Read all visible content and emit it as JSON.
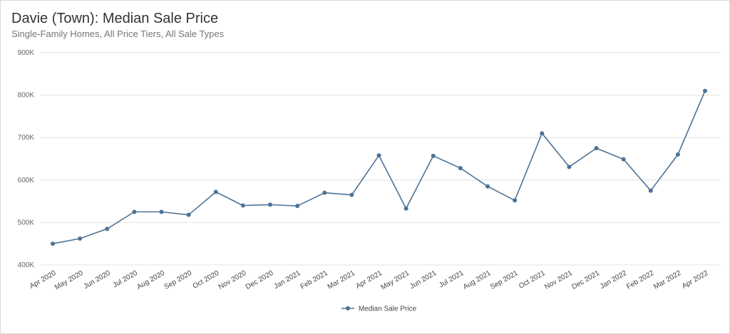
{
  "header": {
    "title": "Davie (Town): Median Sale Price",
    "subtitle": "Single-Family Homes, All Price Tiers, All Sale Types"
  },
  "colors": {
    "series": "#4e7396",
    "grid": "#e3e3e3"
  },
  "chart_data": {
    "type": "line",
    "title": "Davie (Town): Median Sale Price",
    "subtitle": "Single-Family Homes, All Price Tiers, All Sale Types",
    "xlabel": "",
    "ylabel": "",
    "ylim": [
      400000,
      900000
    ],
    "grid": true,
    "legend_position": "bottom-center",
    "y_ticks": [
      400000,
      500000,
      600000,
      700000,
      800000,
      900000
    ],
    "y_tick_labels": [
      "400K",
      "500K",
      "600K",
      "700K",
      "800K",
      "900K"
    ],
    "categories": [
      "Apr 2020",
      "May 2020",
      "Jun 2020",
      "Jul 2020",
      "Aug 2020",
      "Sep 2020",
      "Oct 2020",
      "Nov 2020",
      "Dec 2020",
      "Jan 2021",
      "Feb 2021",
      "Mar 2021",
      "Apr 2021",
      "May 2021",
      "Jun 2021",
      "Jul 2021",
      "Aug 2021",
      "Sep 2021",
      "Oct 2021",
      "Nov 2021",
      "Dec 2021",
      "Jan 2022",
      "Feb 2022",
      "Mar 2022",
      "Apr 2022"
    ],
    "series": [
      {
        "name": "Median Sale Price",
        "values": [
          450000,
          462000,
          485000,
          525000,
          525000,
          518000,
          572000,
          540000,
          542000,
          539000,
          570000,
          565000,
          658000,
          533000,
          657000,
          628000,
          585000,
          552000,
          710000,
          631000,
          675000,
          649000,
          575000,
          660000,
          810000
        ]
      }
    ]
  }
}
